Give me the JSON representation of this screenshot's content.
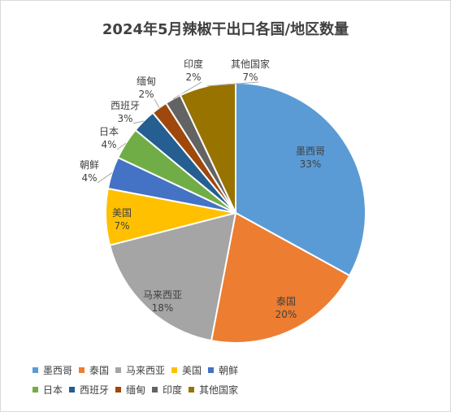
{
  "chart_data": {
    "type": "pie",
    "title": "2024年5月辣椒干出口各国/地区数量",
    "slices": [
      {
        "label": "墨西哥",
        "value": 33,
        "value_label": "33%",
        "color": "#5b9bd5"
      },
      {
        "label": "泰国",
        "value": 20,
        "value_label": "20%",
        "color": "#ed7d31"
      },
      {
        "label": "马来西亚",
        "value": 18,
        "value_label": "18%",
        "color": "#a5a5a5"
      },
      {
        "label": "美国",
        "value": 7,
        "value_label": "7%",
        "color": "#ffc000"
      },
      {
        "label": "朝鲜",
        "value": 4,
        "value_label": "4%",
        "color": "#4472c4"
      },
      {
        "label": "日本",
        "value": 4,
        "value_label": "4%",
        "color": "#70ad47"
      },
      {
        "label": "西班牙",
        "value": 3,
        "value_label": "3%",
        "color": "#255e91"
      },
      {
        "label": "缅甸",
        "value": 2,
        "value_label": "2%",
        "color": "#9e480e"
      },
      {
        "label": "印度",
        "value": 2,
        "value_label": "2%",
        "color": "#636363"
      },
      {
        "label": "其他国家",
        "value": 7,
        "value_label": "7%",
        "color": "#997300"
      }
    ],
    "legend_position": "bottom"
  }
}
